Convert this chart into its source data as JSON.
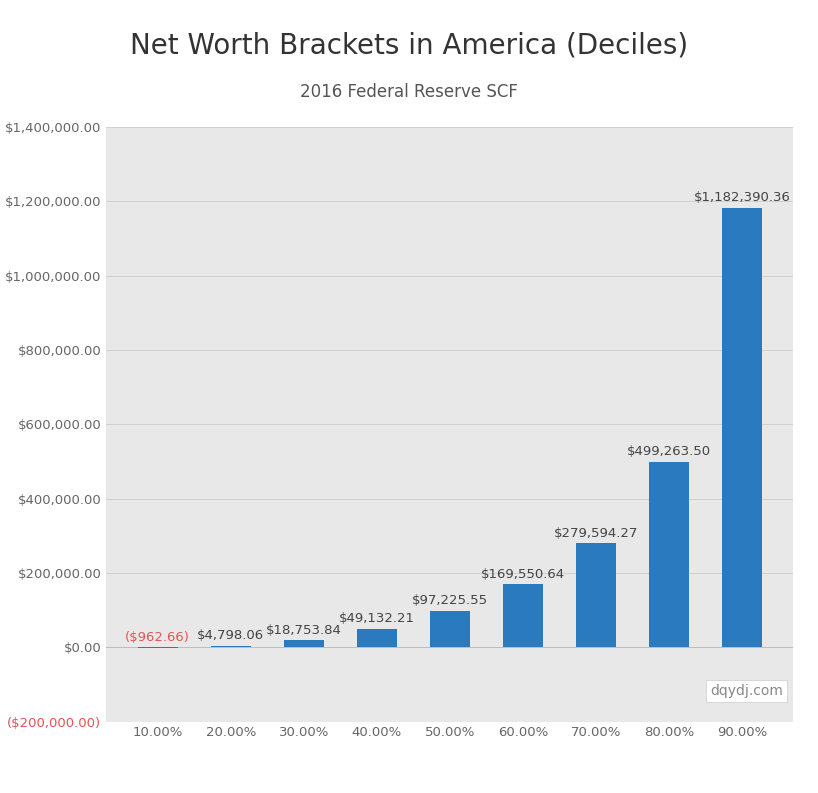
{
  "title": "Net Worth Brackets in America (Deciles)",
  "subtitle": "2016 Federal Reserve SCF",
  "categories": [
    "10.00%",
    "20.00%",
    "30.00%",
    "40.00%",
    "50.00%",
    "60.00%",
    "70.00%",
    "80.00%",
    "90.00%"
  ],
  "values": [
    -962.66,
    4798.06,
    18753.84,
    49132.21,
    97225.55,
    169550.64,
    279594.27,
    499263.5,
    1182390.36
  ],
  "bar_color": "#2a7abf",
  "bar_labels": [
    "($962.66)",
    "$4,798.06",
    "$18,753.84",
    "$49,132.21",
    "$97,225.55",
    "$169,550.64",
    "$279,594.27",
    "$499,263.50",
    "$1,182,390.36"
  ],
  "neg_label_color": "#e05555",
  "pos_label_color": "#444444",
  "ylim_min": -200000,
  "ylim_max": 1400000,
  "yticks": [
    0,
    200000,
    400000,
    600000,
    800000,
    1000000,
    1200000,
    1400000
  ],
  "ytick_labels": [
    "$0.00",
    "$200,000.00",
    "$400,000.00",
    "$600,000.00",
    "$800,000.00",
    "$1,000,000.00",
    "$1,200,000.00",
    "$1,400,000.00"
  ],
  "neg_ytick": -200000,
  "neg_ytick_label": "($200,000.00)",
  "bg_color": "#ffffff",
  "plot_bg_color": "#e8e8e8",
  "grid_color": "#cccccc",
  "watermark": "dqydj.com",
  "title_fontsize": 20,
  "subtitle_fontsize": 12,
  "tick_fontsize": 9.5,
  "label_fontsize": 9.5
}
